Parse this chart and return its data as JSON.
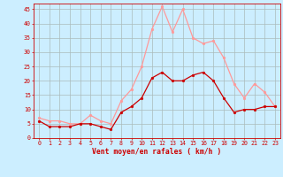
{
  "hours": [
    0,
    1,
    2,
    3,
    4,
    5,
    6,
    7,
    8,
    9,
    10,
    11,
    12,
    13,
    14,
    15,
    16,
    17,
    18,
    19,
    20,
    21,
    22,
    23
  ],
  "wind_avg": [
    6,
    4,
    4,
    4,
    5,
    5,
    4,
    3,
    9,
    11,
    14,
    21,
    23,
    20,
    20,
    22,
    23,
    20,
    14,
    9,
    10,
    10,
    11,
    11
  ],
  "wind_gust": [
    7,
    6,
    6,
    5,
    5,
    8,
    6,
    5,
    13,
    17,
    25,
    38,
    46,
    37,
    45,
    35,
    33,
    34,
    28,
    19,
    14,
    19,
    16,
    11
  ],
  "bg_color": "#cceeff",
  "grid_color": "#aabbbb",
  "avg_color": "#cc0000",
  "gust_color": "#ff9999",
  "xlabel": "Vent moyen/en rafales ( km/h )",
  "xlabel_color": "#cc0000",
  "ylabel_ticks": [
    0,
    5,
    10,
    15,
    20,
    25,
    30,
    35,
    40,
    45
  ],
  "ylim": [
    0,
    47
  ],
  "xlim": [
    -0.5,
    23.5
  ],
  "marker_size": 2.0,
  "line_width": 0.9,
  "tick_fontsize": 4.8,
  "xlabel_fontsize": 5.8
}
